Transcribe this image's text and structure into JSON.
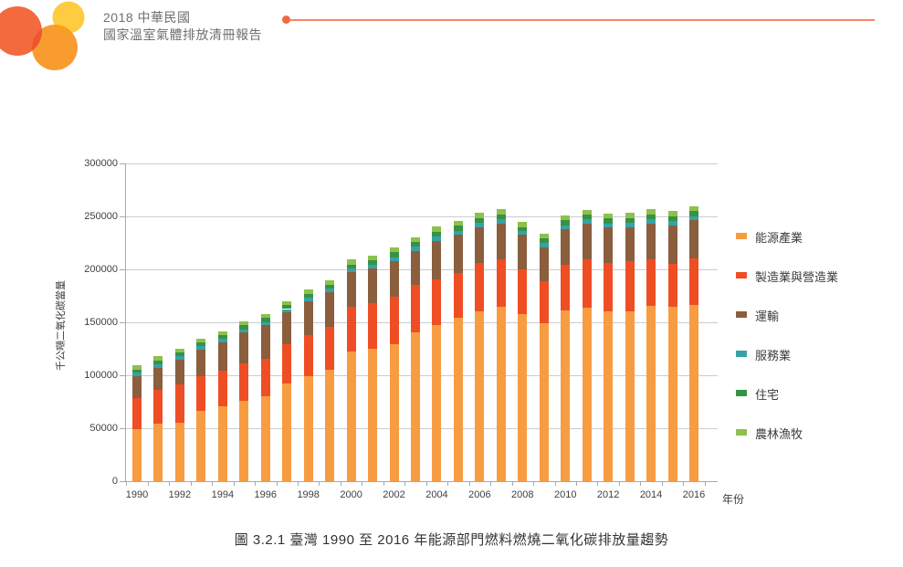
{
  "header": {
    "title_line1": "2018 中華民國",
    "title_line2": "國家溫室氣體排放清冊報告"
  },
  "logo": {
    "circle_colors": {
      "large_red_orange": "#f26a3d",
      "yellow": "#fdcc40",
      "orange": "#f89c30",
      "overlap_red": "#ef5530",
      "overlap_deep_orange": "#f7a01c"
    }
  },
  "chart_data": {
    "type": "bar",
    "subtype": "stacked",
    "title": "",
    "ylabel": "千公噸二氧化碳當量",
    "xlabel": "年份",
    "ylim": [
      0,
      300000
    ],
    "yticks": [
      0,
      50000,
      100000,
      150000,
      200000,
      250000,
      300000
    ],
    "grid": "horizontal",
    "legend_position": "right",
    "categories": [
      1990,
      1991,
      1992,
      1993,
      1994,
      1995,
      1996,
      1997,
      1998,
      1999,
      2000,
      2001,
      2002,
      2003,
      2004,
      2005,
      2006,
      2007,
      2008,
      2009,
      2010,
      2011,
      2012,
      2013,
      2014,
      2015,
      2016
    ],
    "xtick_labels": [
      "1990",
      "1992",
      "1994",
      "1996",
      "1998",
      "2000",
      "2002",
      "2004",
      "2006",
      "2008",
      "2010",
      "2012",
      "2014",
      "2016"
    ],
    "series": [
      {
        "name": "能源產業",
        "color": "#f89c42",
        "values": [
          48900,
          53900,
          55300,
          66000,
          70600,
          76100,
          80400,
          92500,
          99400,
          104900,
          122200,
          125000,
          129700,
          140300,
          147000,
          153900,
          160500,
          164300,
          157400,
          149000,
          161400,
          163700,
          160500,
          160200,
          165400,
          164300,
          166500
        ]
      },
      {
        "name": "製造業與營造業",
        "color": "#ef4e24",
        "values": [
          29400,
          32600,
          36000,
          33100,
          33700,
          35100,
          35500,
          37200,
          38900,
          40900,
          42100,
          42700,
          44600,
          45000,
          43700,
          42400,
          45300,
          45500,
          42600,
          39500,
          42700,
          45500,
          45800,
          47500,
          44100,
          40600,
          43600
        ]
      },
      {
        "name": "運輸",
        "color": "#8b5e3d",
        "values": [
          20700,
          20700,
          23300,
          25400,
          27100,
          28900,
          31100,
          29400,
          31200,
          32800,
          33400,
          32900,
          33800,
          32300,
          36100,
          36300,
          34200,
          33200,
          32600,
          32500,
          33700,
          33800,
          33200,
          32300,
          34000,
          36800,
          36300
        ]
      },
      {
        "name": "服務業",
        "color": "#35a3a6",
        "values": [
          3500,
          3500,
          3500,
          3500,
          3500,
          3400,
          3400,
          3400,
          3400,
          3500,
          3400,
          4000,
          3400,
          4000,
          4000,
          4000,
          4100,
          4000,
          3400,
          4100,
          3900,
          4000,
          4000,
          4100,
          4000,
          4100,
          4000
        ]
      },
      {
        "name": "住宅",
        "color": "#389245",
        "values": [
          2900,
          3400,
          3500,
          3100,
          3400,
          3500,
          3500,
          3500,
          3500,
          3500,
          3500,
          4000,
          4700,
          4500,
          4700,
          4600,
          4600,
          4800,
          4000,
          4000,
          4700,
          4600,
          4700,
          4600,
          4600,
          4600,
          4700
        ]
      },
      {
        "name": "農林漁牧",
        "color": "#8cc14b",
        "values": [
          3700,
          4000,
          3500,
          3500,
          3500,
          4000,
          4000,
          4000,
          4300,
          4300,
          4600,
          4600,
          4800,
          4500,
          4700,
          4600,
          4600,
          4800,
          4700,
          4600,
          4600,
          4600,
          4500,
          4600,
          4700,
          4700,
          4000
        ]
      }
    ]
  },
  "caption": "圖 3.2.1 臺灣 1990 至 2016 年能源部門燃料燃燒二氧化碳排放量趨勢"
}
